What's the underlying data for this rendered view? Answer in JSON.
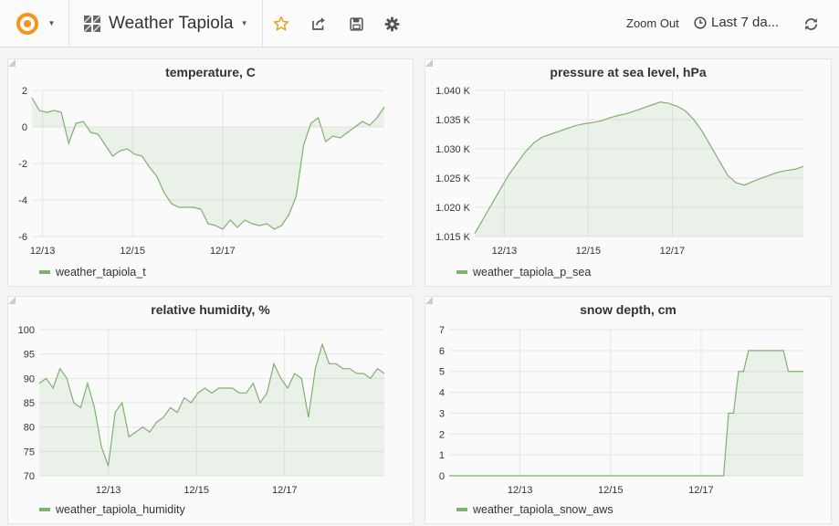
{
  "navbar": {
    "app_icon": "grafana-logo-icon",
    "dashboard_icon": "dashboard-grid-icon",
    "dashboard_title": "Weather Tapiola",
    "star_icon": "star-icon",
    "share_icon": "share-icon",
    "save_icon": "save-icon",
    "settings_icon": "gear-icon",
    "zoom_out_label": "Zoom Out",
    "time_range_label": "Last 7 da...",
    "clock_icon": "clock-icon",
    "refresh_icon": "refresh-icon",
    "accent_color": "#f7941d",
    "star_color": "#e8a317"
  },
  "panels": [
    {
      "id": "temperature",
      "title": "temperature, C",
      "legend": "weather_tapiola_t",
      "series_color": "#7eb26d",
      "chart_data": {
        "type": "area",
        "x_ticks": [
          "12/13",
          "12/15",
          "12/17"
        ],
        "y_ticks": [
          "2",
          "0",
          "-2",
          "-4",
          "-6"
        ],
        "ylim": [
          -6,
          2
        ],
        "fill_baseline": 0,
        "series": [
          {
            "name": "weather_tapiola_t",
            "values": [
              1.6,
              0.9,
              0.8,
              0.9,
              0.8,
              -0.9,
              0.2,
              0.3,
              -0.3,
              -0.4,
              -1.0,
              -1.6,
              -1.3,
              -1.2,
              -1.5,
              -1.6,
              -2.2,
              -2.7,
              -3.6,
              -4.2,
              -4.4,
              -4.4,
              -4.4,
              -4.5,
              -5.3,
              -5.4,
              -5.6,
              -5.1,
              -5.5,
              -5.1,
              -5.3,
              -5.4,
              -5.3,
              -5.6,
              -5.4,
              -4.8,
              -3.8,
              -1.0,
              0.2,
              0.5,
              -0.8,
              -0.5,
              -0.6,
              -0.3,
              0.0,
              0.3,
              0.1,
              0.5,
              1.1
            ]
          }
        ]
      }
    },
    {
      "id": "pressure",
      "title": "pressure at sea level, hPa",
      "legend": "weather_tapiola_p_sea",
      "series_color": "#7eb26d",
      "chart_data": {
        "type": "area",
        "x_ticks": [
          "12/13",
          "12/15",
          "12/17"
        ],
        "y_ticks": [
          "1.040 K",
          "1.035 K",
          "1.030 K",
          "1.025 K",
          "1.020 K",
          "1.015 K"
        ],
        "ylim": [
          1015,
          1040
        ],
        "fill_baseline": 1015,
        "series": [
          {
            "name": "weather_tapiola_p_sea",
            "values": [
              1015.5,
              1018.0,
              1020.5,
              1023.0,
              1025.5,
              1027.5,
              1029.5,
              1031.0,
              1032.0,
              1032.5,
              1033.0,
              1033.5,
              1034.0,
              1034.3,
              1034.5,
              1034.8,
              1035.3,
              1035.7,
              1036.0,
              1036.5,
              1037.0,
              1037.5,
              1038.0,
              1037.8,
              1037.3,
              1036.5,
              1035.0,
              1033.0,
              1030.5,
              1028.0,
              1025.5,
              1024.2,
              1023.8,
              1024.4,
              1025.0,
              1025.5,
              1026.0,
              1026.3,
              1026.5,
              1027.0
            ]
          }
        ]
      }
    },
    {
      "id": "humidity",
      "title": "relative humidity, %",
      "legend": "weather_tapiola_humidity",
      "series_color": "#7eb26d",
      "chart_data": {
        "type": "area",
        "x_ticks": [
          "12/13",
          "12/15",
          "12/17"
        ],
        "y_ticks": [
          "100",
          "95",
          "90",
          "85",
          "80",
          "75",
          "70"
        ],
        "ylim": [
          70,
          100
        ],
        "fill_baseline": 70,
        "series": [
          {
            "name": "weather_tapiola_humidity",
            "values": [
              89,
              90,
              88,
              92,
              90,
              85,
              84,
              89,
              84,
              76,
              72,
              83,
              85,
              78,
              79,
              80,
              79,
              81,
              82,
              84,
              83,
              86,
              85,
              87,
              88,
              87,
              88,
              88,
              88,
              87,
              87,
              89,
              85,
              87,
              93,
              90,
              88,
              91,
              90,
              82,
              92,
              97,
              93,
              93,
              92,
              92,
              91,
              91,
              90,
              92,
              91
            ]
          }
        ]
      }
    },
    {
      "id": "snow",
      "title": "snow depth, cm",
      "legend": "weather_tapiola_snow_aws",
      "series_color": "#7eb26d",
      "chart_data": {
        "type": "area",
        "x_ticks": [
          "12/13",
          "12/15",
          "12/17"
        ],
        "y_ticks": [
          "7",
          "6",
          "5",
          "4",
          "3",
          "2",
          "1",
          "0"
        ],
        "ylim": [
          0,
          7
        ],
        "fill_baseline": 0,
        "series": [
          {
            "name": "weather_tapiola_snow_aws",
            "values": [
              0,
              0,
              0,
              0,
              0,
              0,
              0,
              0,
              0,
              0,
              0,
              0,
              0,
              0,
              0,
              0,
              0,
              0,
              0,
              0,
              0,
              0,
              0,
              0,
              0,
              0,
              0,
              0,
              0,
              0,
              0,
              0,
              0,
              0,
              0,
              0,
              0,
              0,
              0,
              0,
              0,
              0,
              0,
              0,
              0,
              0,
              0,
              0,
              0,
              0,
              0,
              0,
              0,
              0,
              0,
              0,
              3,
              3,
              5,
              5,
              6,
              6,
              6,
              6,
              6,
              6,
              6,
              6,
              5,
              5,
              5,
              5
            ]
          }
        ]
      }
    }
  ]
}
